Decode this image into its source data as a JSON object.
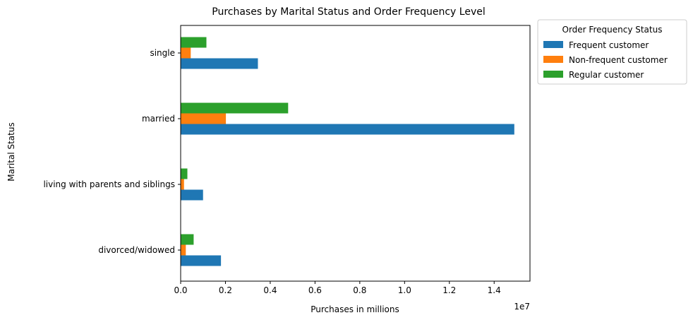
{
  "chart_data": {
    "type": "bar",
    "orientation": "horizontal",
    "title": "Purchases by Marital Status and Order Frequency Level",
    "xlabel": "Purchases in millions",
    "ylabel": "Marital Status",
    "x_scale_label": "1e7",
    "xlim": [
      0,
      15600000
    ],
    "xticks": [
      0,
      2000000,
      4000000,
      6000000,
      8000000,
      10000000,
      12000000,
      14000000
    ],
    "xtick_labels": [
      "0.0",
      "0.2",
      "0.4",
      "0.6",
      "0.8",
      "1.0",
      "1.2",
      "1.4"
    ],
    "categories": [
      "divorced/widowed",
      "living with parents and siblings",
      "married",
      "single"
    ],
    "grid": false,
    "legend": {
      "title": "Order Frequency Status",
      "placement": "outside-upper-right"
    },
    "series": [
      {
        "name": "Frequent customer",
        "color": "#1f77b4",
        "values": [
          1800000,
          1000000,
          14900000,
          3450000
        ]
      },
      {
        "name": "Non-frequent customer",
        "color": "#ff7f0e",
        "values": [
          230000,
          150000,
          2020000,
          450000
        ]
      },
      {
        "name": "Regular customer",
        "color": "#2ca02c",
        "values": [
          580000,
          300000,
          4800000,
          1150000
        ]
      }
    ]
  }
}
